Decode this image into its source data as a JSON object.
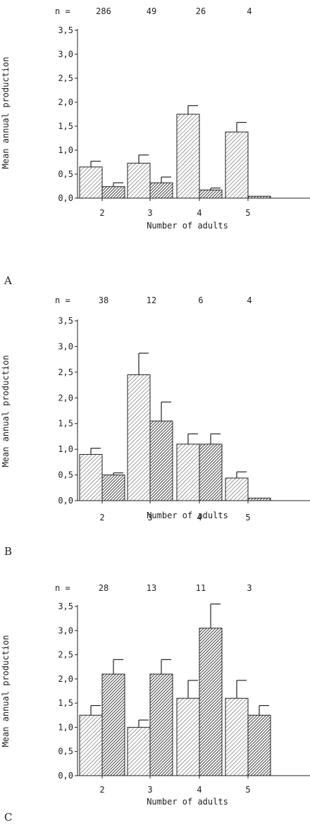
{
  "chart_data": [
    {
      "type": "bar",
      "panel_label": "A",
      "n_label": "n =",
      "n_values": [
        "286",
        "49",
        "26",
        "4"
      ],
      "categories": [
        "2",
        "3",
        "4",
        "5"
      ],
      "xlabel": "Number of adults",
      "ylabel": "Mean annual production",
      "ylim": [
        0,
        3.5
      ],
      "yticks": [
        "0,0",
        "0,5",
        "1,0",
        "1,5",
        "2,0",
        "2,5",
        "3,0",
        "3,5"
      ],
      "series": [
        {
          "values": [
            0.65,
            0.73,
            1.75,
            1.38
          ],
          "errors": [
            0.12,
            0.17,
            0.18,
            0.2
          ],
          "pattern": "light"
        },
        {
          "values": [
            0.24,
            0.32,
            0.17,
            0.04
          ],
          "errors": [
            0.08,
            0.12,
            0.04,
            0.0
          ],
          "pattern": "dark"
        }
      ]
    },
    {
      "type": "bar",
      "panel_label": "B",
      "n_label": "n =",
      "n_values": [
        "38",
        "12",
        "6",
        "4"
      ],
      "categories": [
        "2",
        "3",
        "4",
        "5"
      ],
      "xlabel": "Number of adults",
      "ylabel": "Mean annual production",
      "ylim": [
        0,
        3.5
      ],
      "yticks": [
        "0,0",
        "0,5",
        "1,0",
        "1,5",
        "2,0",
        "2,5",
        "3,0",
        "3,5"
      ],
      "series": [
        {
          "values": [
            0.9,
            2.45,
            1.1,
            0.44
          ],
          "errors": [
            0.12,
            0.42,
            0.2,
            0.12
          ],
          "pattern": "light"
        },
        {
          "values": [
            0.5,
            1.55,
            1.1,
            0.05
          ],
          "errors": [
            0.04,
            0.37,
            0.2,
            0.0
          ],
          "pattern": "dark"
        }
      ]
    },
    {
      "type": "bar",
      "panel_label": "C",
      "n_label": "n =",
      "n_values": [
        "28",
        "13",
        "11",
        "3"
      ],
      "categories": [
        "2",
        "3",
        "4",
        "5"
      ],
      "xlabel": "Number of adults",
      "ylabel": "Mean annual production",
      "ylim": [
        0,
        3.5
      ],
      "yticks": [
        "0,0",
        "0,5",
        "1,0",
        "1,5",
        "2,0",
        "2,5",
        "3,0",
        "3,5"
      ],
      "series": [
        {
          "values": [
            1.25,
            1.0,
            1.6,
            1.6
          ],
          "errors": [
            0.2,
            0.15,
            0.37,
            0.37
          ],
          "pattern": "light"
        },
        {
          "values": [
            2.1,
            2.1,
            3.05,
            1.25
          ],
          "errors": [
            0.3,
            0.3,
            0.5,
            0.2
          ],
          "pattern": "dark"
        }
      ]
    }
  ]
}
